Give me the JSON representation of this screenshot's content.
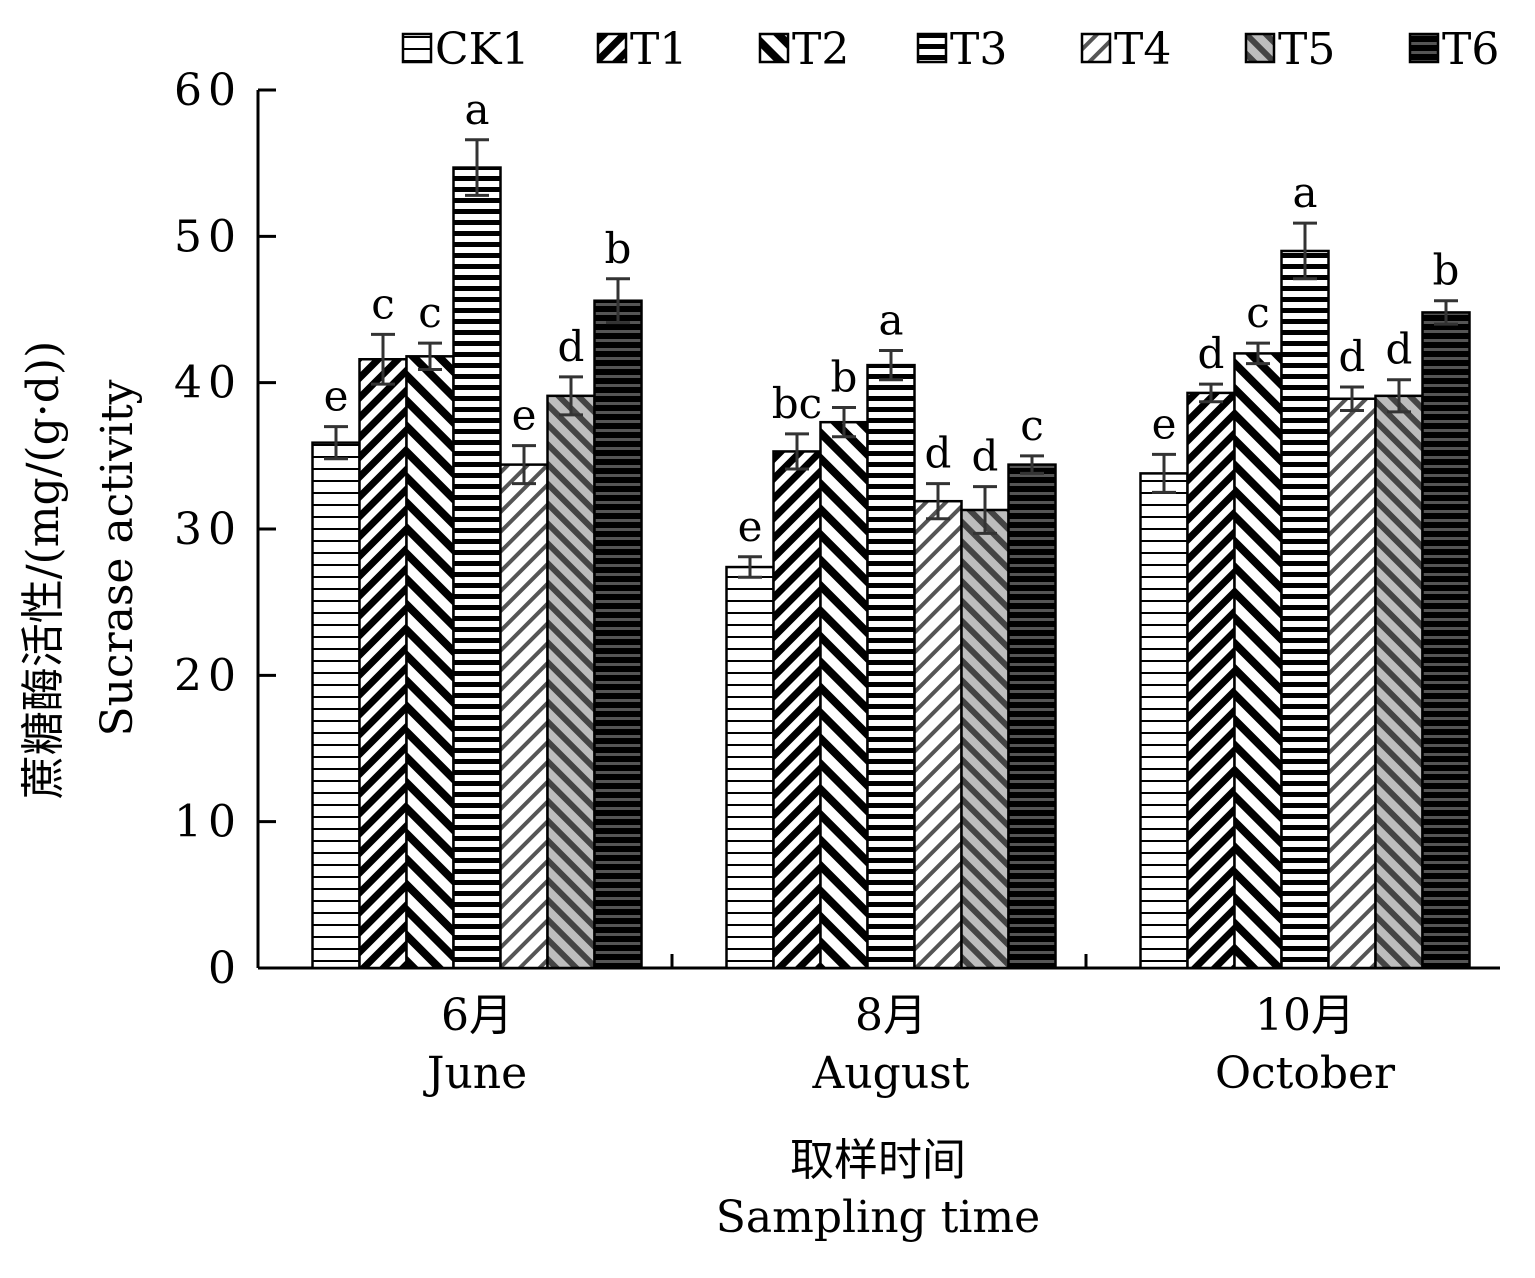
{
  "chart_data": {
    "type": "bar",
    "ylabel_cn": "蔗糖酶活性/(mg/(g·d))",
    "ylabel_en": "Sucrase activity",
    "xlabel_cn": "取样时间",
    "xlabel_en": "Sampling time",
    "ylim": [
      0,
      60
    ],
    "yticks": [
      0,
      10,
      20,
      30,
      40,
      50,
      60
    ],
    "legend_position": "top",
    "categories": [
      {
        "cn": "6月",
        "en": "June"
      },
      {
        "cn": "8月",
        "en": "August"
      },
      {
        "cn": "10月",
        "en": "October"
      }
    ],
    "series": [
      {
        "name": "CK1",
        "pattern": "horizontal-thin",
        "values": [
          35.9,
          27.4,
          33.8
        ],
        "errors": [
          1.1,
          0.7,
          1.3
        ],
        "labels": [
          "e",
          "e",
          "e"
        ]
      },
      {
        "name": "T1",
        "pattern": "diagonal-back-dense",
        "values": [
          41.6,
          35.3,
          39.3
        ],
        "errors": [
          1.7,
          1.2,
          0.6
        ],
        "labels": [
          "c",
          "bc",
          "d"
        ]
      },
      {
        "name": "T2",
        "pattern": "diagonal-forward-bold",
        "values": [
          41.8,
          37.3,
          42.0
        ],
        "errors": [
          0.9,
          1.0,
          0.7
        ],
        "labels": [
          "c",
          "b",
          "c"
        ]
      },
      {
        "name": "T3",
        "pattern": "horizontal-bold",
        "values": [
          54.7,
          41.2,
          49.0
        ],
        "errors": [
          1.9,
          1.0,
          1.9
        ],
        "labels": [
          "a",
          "a",
          "a"
        ]
      },
      {
        "name": "T4",
        "pattern": "diagonal-back-light",
        "values": [
          34.4,
          31.9,
          38.9
        ],
        "errors": [
          1.3,
          1.2,
          0.8
        ],
        "labels": [
          "e",
          "d",
          "d"
        ]
      },
      {
        "name": "T5",
        "pattern": "diagonal-forward-gray",
        "values": [
          39.1,
          31.3,
          39.1
        ],
        "errors": [
          1.3,
          1.6,
          1.1
        ],
        "labels": [
          "d",
          "d",
          "d"
        ]
      },
      {
        "name": "T6",
        "pattern": "horizontal-dark",
        "values": [
          45.6,
          34.4,
          44.8
        ],
        "errors": [
          1.5,
          0.6,
          0.8
        ],
        "labels": [
          "b",
          "c",
          "b"
        ]
      }
    ]
  }
}
